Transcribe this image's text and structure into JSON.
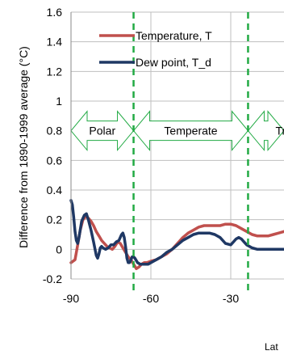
{
  "chart_data": {
    "type": "line",
    "ylabel": "Difference from 1890-1999 average (°C)",
    "xlabel": "Lat",
    "xlim": [
      -90,
      -10
    ],
    "ylim": [
      -0.2,
      1.6
    ],
    "x_ticks": [
      "-90",
      "-60",
      "-30"
    ],
    "x_tick_values": [
      -90,
      -60,
      -30
    ],
    "y_ticks": [
      "-0.2",
      "0",
      "0.2",
      "0.4",
      "0.6",
      "0.8",
      "1",
      "1.2",
      "1.4",
      "1.6"
    ],
    "y_tick_values": [
      -0.2,
      0,
      0.2,
      0.4,
      0.6,
      0.8,
      1,
      1.2,
      1.4,
      1.6
    ],
    "grid": true,
    "legend": "top-right",
    "series": [
      {
        "name": "Temperature, T",
        "color": "#c0504d",
        "x": [
          -90,
          -88.5,
          -87.5,
          -86.5,
          -85.5,
          -84.5,
          -83.5,
          -82.5,
          -81.5,
          -80.5,
          -79.5,
          -78.5,
          -77.5,
          -76.5,
          -75.5,
          -74.5,
          -73.5,
          -72.5,
          -71.5,
          -70.5,
          -69.5,
          -68.5,
          -67.5,
          -66.5,
          -65.5,
          -64.5,
          -63.5,
          -62.5,
          -61.5,
          -60,
          -58,
          -56,
          -54,
          -52,
          -50,
          -48,
          -46,
          -44,
          -42,
          -40,
          -38,
          -36,
          -34,
          -32,
          -30,
          -28,
          -26,
          -24,
          -22,
          -20,
          -18,
          -16,
          -14,
          -12,
          -10
        ],
        "y": [
          -0.09,
          -0.07,
          0.03,
          0.13,
          0.2,
          0.22,
          0.21,
          0.19,
          0.16,
          0.12,
          0.09,
          0.06,
          0.04,
          0.02,
          0.01,
          0.0,
          0.02,
          0.05,
          0.04,
          0.01,
          -0.02,
          -0.05,
          -0.07,
          -0.1,
          -0.13,
          -0.12,
          -0.1,
          -0.09,
          -0.09,
          -0.08,
          -0.07,
          -0.05,
          -0.03,
          0.0,
          0.04,
          0.08,
          0.11,
          0.13,
          0.15,
          0.16,
          0.16,
          0.16,
          0.16,
          0.17,
          0.17,
          0.16,
          0.14,
          0.12,
          0.1,
          0.09,
          0.09,
          0.09,
          0.1,
          0.11,
          0.12
        ]
      },
      {
        "name": "Dew point, T_d",
        "color": "#1f3864",
        "x": [
          -90,
          -89.5,
          -89,
          -88.5,
          -88,
          -87.5,
          -87,
          -86,
          -85,
          -84.2,
          -83.5,
          -82.5,
          -81.5,
          -80.5,
          -80,
          -79.5,
          -79,
          -78.5,
          -78,
          -77,
          -76,
          -75,
          -74,
          -73,
          -72,
          -71,
          -70.5,
          -70,
          -69.5,
          -69,
          -68.5,
          -68,
          -67.5,
          -67,
          -66.5,
          -66,
          -65,
          -64,
          -63,
          -62,
          -61,
          -60,
          -58,
          -56,
          -54,
          -52,
          -50,
          -48,
          -46,
          -44,
          -42,
          -40,
          -38,
          -36,
          -34,
          -32,
          -30,
          -29,
          -28,
          -27,
          -26,
          -25,
          -24,
          -22,
          -20,
          -18,
          -16,
          -14,
          -12,
          -10
        ],
        "y": [
          0.33,
          0.3,
          0.22,
          0.12,
          0.06,
          0.04,
          0.08,
          0.19,
          0.23,
          0.24,
          0.2,
          0.13,
          0.05,
          -0.04,
          -0.06,
          -0.03,
          0.01,
          0.02,
          0.01,
          0.0,
          0.01,
          0.03,
          0.03,
          0.05,
          0.06,
          0.1,
          0.11,
          0.08,
          0.02,
          -0.06,
          -0.09,
          -0.09,
          -0.07,
          -0.05,
          -0.05,
          -0.06,
          -0.09,
          -0.1,
          -0.1,
          -0.1,
          -0.1,
          -0.09,
          -0.07,
          -0.05,
          -0.02,
          0.0,
          0.03,
          0.06,
          0.08,
          0.1,
          0.11,
          0.11,
          0.11,
          0.1,
          0.08,
          0.04,
          0.03,
          0.05,
          0.07,
          0.08,
          0.07,
          0.05,
          0.03,
          0.01,
          0.0,
          0.0,
          0.0,
          0.0,
          0.0,
          0.0
        ]
      }
    ],
    "zone_boundaries": [
      -66.5,
      -23.5
    ],
    "zones": [
      {
        "label": "Polar",
        "from": -90,
        "to": -66.5
      },
      {
        "label": "Temperate",
        "from": -66.5,
        "to": -23.5
      },
      {
        "label": "Tr",
        "from": -23.5,
        "to": -10
      }
    ],
    "zone_y": 0.8,
    "colors": {
      "grid": "#bfbfbf",
      "zone_line": "#22aa44",
      "arrow_fill": "#ffffff",
      "arrow_stroke": "#22aa44"
    }
  }
}
